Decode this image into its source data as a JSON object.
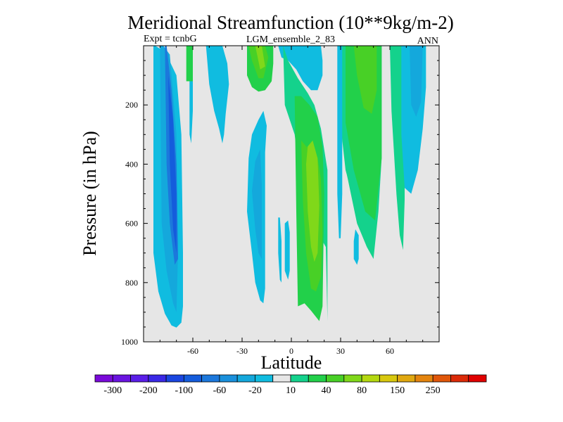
{
  "chart_data": {
    "type": "contour",
    "title": "Meridional Streamfunction (10**9kg/m-2)",
    "left_label": "Expt = tcnbG",
    "center_label": "LGM_ensemble_2_83",
    "right_label": "ANN",
    "xlabel": "Latitude",
    "ylabel": "Pressure (in hPa)",
    "xlim": [
      -90,
      90
    ],
    "ylim": [
      1000,
      0
    ],
    "xticks": [
      -60,
      -30,
      0,
      30,
      60
    ],
    "xtick_labels": [
      "-60",
      "-30",
      "0",
      "30",
      "60"
    ],
    "yticks": [
      200,
      400,
      600,
      800,
      1000
    ],
    "ytick_labels": [
      "200",
      "400",
      "600",
      "800",
      "1000"
    ],
    "background_level_color": "#e6e6e6",
    "colorbar": {
      "boundary_labels": [
        "-300",
        "-200",
        "-100",
        "-60",
        "-20",
        "10",
        "40",
        "80",
        "150",
        "250"
      ],
      "colors": [
        "#7a0ad9",
        "#6a14e0",
        "#5a1ee8",
        "#3a28e6",
        "#1a46e0",
        "#145cdc",
        "#1c78dc",
        "#1a90dc",
        "#14a8dc",
        "#10bce0",
        "#e6e6e6",
        "#14d28c",
        "#22d04a",
        "#48d026",
        "#80d81a",
        "#b4d810",
        "#d8c80e",
        "#e0a810",
        "#e4840e",
        "#e0560a",
        "#dc2a08",
        "#e00000"
      ]
    },
    "regions": [
      {
        "name": "south-polar-cell-outer",
        "level": "-20",
        "color": "#10bce0",
        "lat": [
          -84,
          -84,
          -81,
          -77,
          -73,
          -70,
          -67,
          -66,
          -66,
          -67,
          -70,
          -76,
          -80,
          -83
        ],
        "p": [
          0,
          700,
          830,
          905,
          945,
          952,
          935,
          880,
          700,
          300,
          100,
          30,
          10,
          0
        ]
      },
      {
        "name": "south-polar-cell-band",
        "level": "-60",
        "color": "#14a8dc",
        "lat": [
          -80,
          -79,
          -76,
          -72,
          -70,
          -69,
          -70,
          -74,
          -78
        ],
        "p": [
          0,
          600,
          760,
          870,
          900,
          700,
          300,
          30,
          0
        ]
      },
      {
        "name": "south-polar-cell-core",
        "level": "-100",
        "color": "#1c78dc",
        "lat": [
          -77,
          -76,
          -74,
          -71,
          -69,
          -70,
          -73,
          -76
        ],
        "p": [
          0,
          400,
          600,
          740,
          720,
          400,
          150,
          0
        ]
      },
      {
        "name": "south-polar-cell-center",
        "level": "-200",
        "color": "#145cdc",
        "lat": [
          -75,
          -74,
          -72,
          -70,
          -70,
          -72
        ],
        "p": [
          100,
          400,
          620,
          700,
          500,
          250
        ]
      },
      {
        "name": "south-strip-green",
        "level": "40",
        "color": "#22d04a",
        "lat": [
          -64,
          -64,
          -60,
          -60
        ],
        "p": [
          0,
          120,
          120,
          0
        ]
      },
      {
        "name": "south-strip-blue",
        "level": "-20",
        "color": "#10bce0",
        "lat": [
          -62,
          -60,
          -60,
          -61,
          -62
        ],
        "p": [
          120,
          120,
          220,
          330,
          300
        ]
      },
      {
        "name": "south-midlat-column",
        "level": "-20",
        "color": "#10bce0",
        "lat": [
          -52,
          -50,
          -47,
          -44,
          -42,
          -41,
          -40,
          -38,
          -39,
          -42,
          -47,
          -51
        ],
        "p": [
          0,
          130,
          220,
          280,
          330,
          300,
          230,
          130,
          60,
          0,
          0,
          0
        ]
      },
      {
        "name": "subtropic-column-outer",
        "level": "-20",
        "color": "#10bce0",
        "lat": [
          -26,
          -27,
          -24,
          -22,
          -19,
          -17,
          -16,
          -16,
          -16,
          -15,
          -17,
          -20,
          -24
        ],
        "p": [
          380,
          560,
          700,
          800,
          860,
          870,
          820,
          560,
          360,
          270,
          220,
          250,
          300
        ]
      },
      {
        "name": "subtropic-column-inner",
        "level": "-60",
        "color": "#14a8dc",
        "lat": [
          -22,
          -24,
          -22,
          -20,
          -18,
          -18,
          -19
        ],
        "p": [
          390,
          490,
          620,
          700,
          720,
          470,
          350
        ]
      },
      {
        "name": "small-blue-column",
        "level": "-20",
        "color": "#10bce0",
        "lat": [
          -8,
          -8,
          -7,
          -6,
          -6,
          -7
        ],
        "p": [
          580,
          700,
          790,
          800,
          660,
          580
        ]
      },
      {
        "name": "small-blue-cell",
        "level": "-20",
        "color": "#10bce0",
        "lat": [
          -4,
          -4,
          -2,
          -1,
          -1,
          -2
        ],
        "p": [
          600,
          760,
          790,
          760,
          630,
          590
        ]
      },
      {
        "name": "upper-hadley-outer",
        "level": "40",
        "color": "#22d04a",
        "lat": [
          -27,
          -27,
          -24,
          -20,
          -16,
          -12,
          -11,
          -11,
          -13
        ],
        "p": [
          0,
          100,
          140,
          155,
          150,
          120,
          60,
          0,
          0
        ]
      },
      {
        "name": "upper-hadley-band",
        "level": "80",
        "color": "#48d026",
        "lat": [
          -26,
          -24,
          -20,
          -17,
          -14,
          -16
        ],
        "p": [
          0,
          50,
          110,
          110,
          40,
          0
        ]
      },
      {
        "name": "upper-hadley-core",
        "level": "150",
        "color": "#80d81a",
        "lat": [
          -22,
          -19,
          -16,
          -18
        ],
        "p": [
          0,
          80,
          70,
          0
        ]
      },
      {
        "name": "upper-equatorial-blue",
        "level": "-20",
        "color": "#10bce0",
        "lat": [
          -8,
          -6,
          -2,
          3,
          7,
          12,
          16,
          19,
          19,
          18
        ],
        "p": [
          0,
          40,
          50,
          80,
          120,
          150,
          150,
          100,
          50,
          0
        ]
      },
      {
        "name": "north-hadley-cell-outer",
        "level": "10",
        "color": "#14d28c",
        "lat": [
          -5,
          -4,
          2,
          5,
          10,
          14,
          18,
          21,
          22,
          22,
          18,
          14,
          10,
          4,
          -2
        ],
        "p": [
          0,
          200,
          300,
          440,
          560,
          620,
          650,
          680,
          930,
          420,
          280,
          200,
          160,
          110,
          50
        ]
      },
      {
        "name": "north-hadley-cell-inner",
        "level": "40",
        "color": "#22d04a",
        "lat": [
          2,
          3,
          4,
          8,
          12,
          17,
          19,
          20,
          19,
          16,
          11,
          6
        ],
        "p": [
          170,
          560,
          880,
          870,
          895,
          930,
          880,
          500,
          340,
          240,
          200,
          170
        ]
      },
      {
        "name": "north-hadley-cell-core",
        "level": "80",
        "color": "#48d026",
        "lat": [
          6,
          7,
          9,
          12,
          15,
          18,
          19,
          18,
          16,
          12,
          9
        ],
        "p": [
          320,
          520,
          700,
          820,
          830,
          780,
          630,
          450,
          380,
          350,
          340
        ]
      },
      {
        "name": "north-hadley-cell-center",
        "level": "150",
        "color": "#80d81a",
        "lat": [
          9,
          10,
          12,
          14,
          16,
          17,
          16,
          13,
          10
        ],
        "p": [
          400,
          560,
          680,
          730,
          700,
          540,
          380,
          320,
          340
        ]
      },
      {
        "name": "north-equatorial-column",
        "level": "10",
        "color": "#14d28c",
        "lat": [
          29,
          29,
          31,
          34,
          40,
          46,
          46,
          43,
          36,
          30
        ],
        "p": [
          0,
          160,
          300,
          440,
          600,
          680,
          680,
          480,
          260,
          0
        ]
      },
      {
        "name": "north-subtropic-column",
        "level": "10",
        "color": "#14d28c",
        "lat": [
          29,
          29,
          33,
          40,
          46,
          50,
          53,
          55,
          55,
          52,
          46,
          38
        ],
        "p": [
          0,
          220,
          420,
          560,
          680,
          720,
          560,
          380,
          0,
          0,
          0,
          0
        ]
      },
      {
        "name": "north-midlat-green",
        "level": "40",
        "color": "#22d04a",
        "lat": [
          33,
          33,
          38,
          45,
          51,
          55,
          55,
          52
        ],
        "p": [
          0,
          260,
          420,
          560,
          590,
          380,
          0,
          0
        ]
      },
      {
        "name": "north-midlat-core",
        "level": "80",
        "color": "#48d026",
        "lat": [
          38,
          40,
          44,
          49,
          52,
          52,
          48
        ],
        "p": [
          0,
          100,
          210,
          230,
          150,
          0,
          0
        ]
      },
      {
        "name": "north-strip-blue",
        "level": "-20",
        "color": "#10bce0",
        "lat": [
          28,
          28,
          29,
          30,
          31,
          31
        ],
        "p": [
          0,
          500,
          650,
          650,
          500,
          0
        ]
      },
      {
        "name": "north-strip-blue-small",
        "level": "-20",
        "color": "#10bce0",
        "lat": [
          38,
          38,
          40,
          41,
          41,
          39
        ],
        "p": [
          660,
          720,
          740,
          720,
          640,
          620
        ]
      },
      {
        "name": "north-polar-column",
        "level": "10",
        "color": "#14d28c",
        "lat": [
          60,
          61,
          64,
          66,
          68,
          69,
          69,
          66
        ],
        "p": [
          0,
          220,
          500,
          640,
          690,
          520,
          0,
          0
        ]
      },
      {
        "name": "north-polar-cell",
        "level": "-20",
        "color": "#10bce0",
        "lat": [
          67,
          67,
          69,
          73,
          77,
          80,
          82,
          82,
          79,
          72
        ],
        "p": [
          0,
          300,
          480,
          500,
          420,
          280,
          140,
          0,
          0,
          0
        ]
      },
      {
        "name": "north-polar-cell-inner",
        "level": "-60",
        "color": "#14a8dc",
        "lat": [
          72,
          73,
          76,
          79,
          80,
          76
        ],
        "p": [
          0,
          200,
          240,
          190,
          0,
          0
        ]
      }
    ]
  }
}
